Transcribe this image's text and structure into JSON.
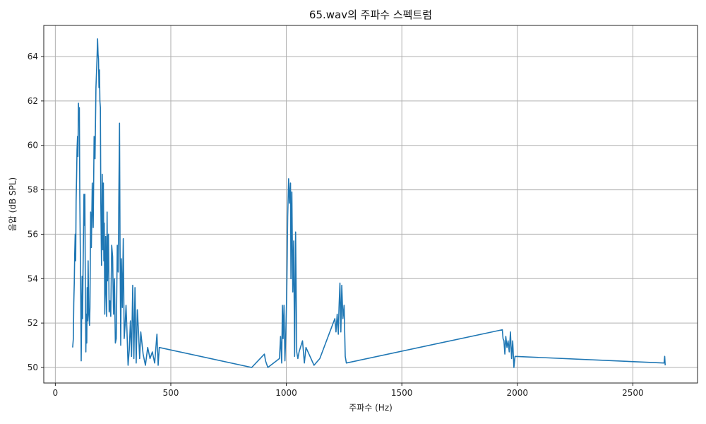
{
  "chart_data": {
    "type": "line",
    "title": "65.wav의 주파수 스펙트럼",
    "xlabel": "주파수 (Hz)",
    "ylabel": "음압 (dB SPL)",
    "xlim": [
      -50,
      2780
    ],
    "ylim": [
      49.3,
      65.4
    ],
    "xticks": [
      0,
      500,
      1000,
      1500,
      2000,
      2500
    ],
    "yticks": [
      50,
      52,
      54,
      56,
      58,
      60,
      62,
      64
    ],
    "grid": true,
    "line_color": "#1f77b4",
    "series": [
      {
        "x": [
          75,
          78,
          80,
          82,
          84,
          86,
          88,
          90,
          92,
          94,
          96,
          98,
          100,
          102,
          104,
          106,
          108,
          110,
          112,
          114,
          116,
          118,
          120,
          122,
          124,
          126,
          128,
          130,
          132,
          134,
          136,
          138,
          140,
          142,
          145,
          148,
          150,
          153,
          156,
          160,
          164,
          168,
          172,
          176,
          180,
          183,
          185,
          187,
          189,
          191,
          193,
          195,
          197,
          200,
          203,
          206,
          208,
          210,
          212,
          214,
          216,
          218,
          220,
          222,
          224,
          226,
          228,
          230,
          233,
          236,
          240,
          244,
          248,
          252,
          256,
          260,
          264,
          268,
          272,
          275,
          278,
          280,
          283,
          286,
          290,
          294,
          298,
          302,
          306,
          310,
          315,
          320,
          325,
          330,
          335,
          340,
          345,
          350,
          355,
          360,
          365,
          370,
          380,
          390,
          400,
          410,
          420,
          430,
          440,
          445,
          450,
          850,
          905,
          910,
          920,
          970,
          975,
          980,
          983,
          986,
          990,
          994,
          998,
          1002,
          1006,
          1010,
          1014,
          1018,
          1020,
          1024,
          1028,
          1032,
          1036,
          1040,
          1045,
          1050,
          1055,
          1070,
          1078,
          1085,
          1120,
          1145,
          1210,
          1215,
          1220,
          1225,
          1228,
          1232,
          1236,
          1240,
          1245,
          1250,
          1255,
          1260,
          1935,
          1938,
          1942,
          1946,
          1950,
          1955,
          1960,
          1965,
          1970,
          1975,
          1980,
          1985,
          1990,
          2635,
          2638,
          2640
        ],
        "values": [
          50.9,
          51.3,
          52.9,
          53.8,
          55.1,
          56.0,
          54.8,
          57.5,
          58.6,
          59.8,
          60.4,
          59.5,
          61.9,
          61.2,
          61.7,
          57.8,
          55.5,
          53.0,
          50.3,
          52.6,
          54.1,
          52.2,
          54.3,
          56.0,
          57.8,
          56.4,
          57.8,
          53.4,
          50.7,
          52.4,
          51.1,
          53.6,
          52.1,
          54.8,
          52.4,
          51.9,
          52.7,
          57.0,
          55.4,
          58.3,
          56.3,
          60.4,
          59.4,
          62.6,
          63.8,
          64.8,
          64.1,
          63.9,
          62.6,
          63.4,
          62.0,
          61.7,
          57.4,
          54.6,
          58.7,
          55.3,
          58.3,
          54.8,
          56.5,
          52.4,
          53.3,
          55.9,
          54.1,
          52.3,
          57.0,
          53.9,
          55.6,
          56.0,
          52.5,
          53.0,
          52.3,
          55.5,
          55.0,
          52.4,
          54.0,
          51.1,
          51.3,
          55.5,
          54.3,
          57.6,
          61.0,
          55.6,
          51.0,
          54.9,
          52.7,
          55.8,
          51.3,
          51.9,
          52.8,
          51.7,
          50.1,
          50.8,
          52.1,
          50.5,
          53.7,
          50.4,
          53.6,
          50.2,
          52.6,
          51.6,
          50.4,
          51.6,
          50.6,
          50.1,
          50.9,
          50.4,
          50.7,
          50.2,
          51.5,
          50.1,
          50.9,
          50.0,
          50.6,
          50.3,
          50.0,
          50.4,
          51.4,
          50.2,
          52.8,
          51.3,
          52.8,
          50.3,
          51.6,
          53.4,
          56.8,
          58.5,
          57.4,
          58.3,
          54.0,
          57.9,
          53.4,
          55.7,
          50.5,
          56.1,
          50.7,
          50.4,
          50.7,
          51.2,
          50.2,
          50.9,
          50.1,
          50.4,
          52.2,
          51.6,
          52.4,
          51.5,
          52.7,
          53.8,
          51.6,
          53.7,
          52.2,
          52.8,
          50.5,
          50.2,
          51.7,
          51.3,
          51.2,
          50.6,
          51.4,
          50.9,
          51.2,
          50.7,
          51.6,
          50.4,
          51.2,
          50.0,
          50.5,
          50.2,
          50.5,
          50.1
        ]
      }
    ]
  }
}
